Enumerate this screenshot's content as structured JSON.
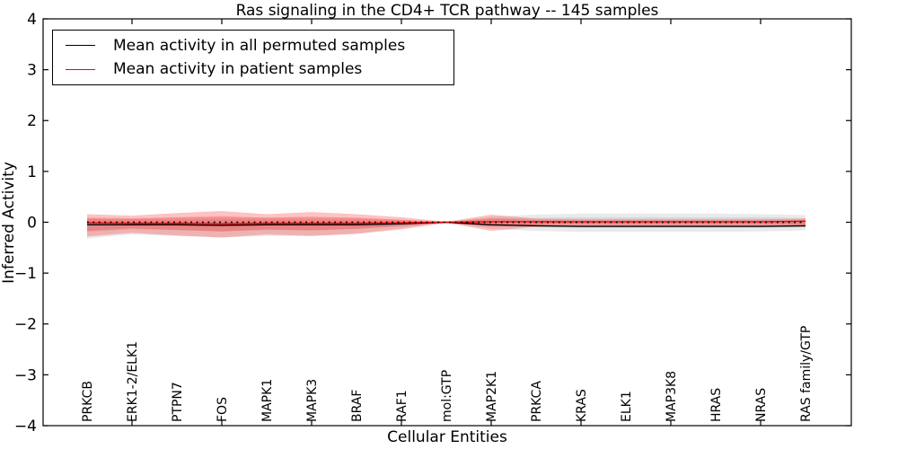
{
  "title": "Ras signaling in the CD4+ TCR pathway -- 145 samples",
  "legend": {
    "entries": [
      {
        "label": "Mean activity in all permuted samples",
        "color": "#000000"
      },
      {
        "label": "Mean activity in patient samples",
        "color": "#ff0000"
      }
    ]
  },
  "chart_data": {
    "type": "line",
    "title": "Ras signaling in the CD4+ TCR pathway -- 145 samples",
    "xlabel": "Cellular Entities",
    "ylabel": "Inferred Activity",
    "ylim": [
      -4,
      4
    ],
    "ytick_values": [
      4,
      3,
      2,
      1,
      0,
      -1,
      -2,
      -3,
      -4
    ],
    "ytick_labels": [
      "4",
      "3",
      "2",
      "1",
      "0",
      "−1",
      "−2",
      "−3",
      "−4"
    ],
    "x_major_tick_indices": [
      1,
      3,
      5,
      7,
      9,
      11,
      13,
      15
    ],
    "grid": false,
    "legend_position": "upper left",
    "categories": [
      "PRKCB",
      "ERK1-2/ELK1",
      "PTPN7",
      "FOS",
      "MAPK1",
      "MAPK3",
      "BRAF",
      "RAF1",
      "mol:GTP",
      "MAP2K1",
      "PRKCA",
      "KRAS",
      "ELK1",
      "MAP3K8",
      "HRAS",
      "NRAS",
      "RAS family/GTP"
    ],
    "zero_line": {
      "y": 0,
      "style": "dotted",
      "color": "#000000"
    },
    "series": [
      {
        "name": "Mean activity in all permuted samples",
        "color": "#000000",
        "values": [
          -0.05,
          -0.05,
          -0.05,
          -0.06,
          -0.05,
          -0.05,
          -0.05,
          -0.03,
          0.0,
          -0.05,
          -0.07,
          -0.08,
          -0.08,
          -0.08,
          -0.08,
          -0.08,
          -0.07
        ]
      },
      {
        "name": "Mean activity in patient samples",
        "color": "#ff0000",
        "values": [
          -0.01,
          -0.02,
          -0.02,
          -0.03,
          -0.02,
          -0.02,
          -0.02,
          -0.01,
          0.0,
          0.01,
          0.01,
          0.01,
          0.01,
          0.01,
          0.01,
          0.01,
          0.02
        ]
      }
    ],
    "bands": [
      {
        "name": "permuted-std-outer",
        "color": "rgba(60,60,60,0.11)",
        "upper": [
          0.1,
          0.08,
          0.09,
          0.1,
          0.09,
          0.09,
          0.08,
          0.05,
          0.01,
          0.11,
          0.15,
          0.17,
          0.17,
          0.17,
          0.17,
          0.16,
          0.14
        ],
        "lower": [
          -0.32,
          -0.24,
          -0.27,
          -0.3,
          -0.27,
          -0.27,
          -0.22,
          -0.12,
          -0.01,
          -0.13,
          -0.17,
          -0.19,
          -0.19,
          -0.19,
          -0.19,
          -0.18,
          -0.16
        ]
      },
      {
        "name": "permuted-std-inner",
        "color": "rgba(60,60,60,0.10)",
        "upper": [
          0.06,
          0.05,
          0.05,
          0.06,
          0.05,
          0.05,
          0.05,
          0.03,
          0.005,
          0.07,
          0.09,
          0.1,
          0.1,
          0.1,
          0.1,
          0.1,
          0.08
        ],
        "lower": [
          -0.19,
          -0.14,
          -0.16,
          -0.18,
          -0.16,
          -0.16,
          -0.13,
          -0.07,
          -0.005,
          -0.08,
          -0.1,
          -0.11,
          -0.11,
          -0.11,
          -0.11,
          -0.11,
          -0.1
        ]
      },
      {
        "name": "patient-std-outer",
        "color": "rgba(255,20,20,0.26)",
        "upper": [
          0.16,
          0.13,
          0.18,
          0.22,
          0.16,
          0.2,
          0.16,
          0.1,
          0.01,
          0.15,
          0.07,
          0.06,
          0.06,
          0.06,
          0.06,
          0.06,
          0.07
        ],
        "lower": [
          -0.28,
          -0.21,
          -0.26,
          -0.3,
          -0.24,
          -0.27,
          -0.23,
          -0.14,
          -0.01,
          -0.17,
          -0.09,
          -0.08,
          -0.08,
          -0.08,
          -0.08,
          -0.08,
          -0.09
        ]
      },
      {
        "name": "patient-std-inner",
        "color": "rgba(255,20,20,0.22)",
        "upper": [
          0.08,
          0.07,
          0.1,
          0.12,
          0.09,
          0.11,
          0.09,
          0.05,
          0.005,
          0.08,
          0.04,
          0.03,
          0.03,
          0.03,
          0.03,
          0.03,
          0.04
        ],
        "lower": [
          -0.17,
          -0.12,
          -0.15,
          -0.18,
          -0.14,
          -0.16,
          -0.13,
          -0.08,
          -0.005,
          -0.09,
          -0.05,
          -0.04,
          -0.04,
          -0.04,
          -0.04,
          -0.04,
          -0.05
        ]
      }
    ]
  }
}
